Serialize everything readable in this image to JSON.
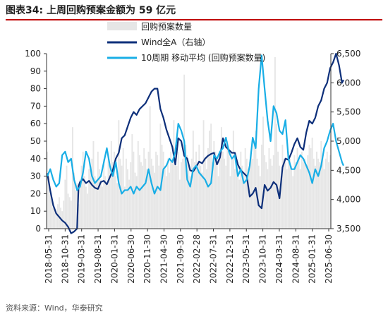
{
  "header": {
    "title": "图表34:  上周回购预案金额为 59 亿元"
  },
  "footer": {
    "source": "资料来源：Wind，华泰研究"
  },
  "colors": {
    "bars": "#e6e6e6",
    "wind_a": "#0d2f7a",
    "ma10": "#19aee6",
    "title_rule": "#c00000"
  },
  "chart_data": {
    "type": "line",
    "title": "",
    "x_tick_labels": [
      "2018-05-31",
      "2018-10-31",
      "2019-03-31",
      "2019-08-31",
      "2020-01-31",
      "2020-06-30",
      "2020-11-30",
      "2021-04-30",
      "2021-09-30",
      "2022-02-28",
      "2022-07-31",
      "2022-12-31",
      "2023-05-31",
      "2023-10-31",
      "2024-03-31",
      "2024-08-31",
      "2025-01-31",
      "2025-06-30"
    ],
    "left_axis": {
      "min": 0,
      "max": 100,
      "ticks": [
        "0",
        "10",
        "20",
        "30",
        "40",
        "50",
        "60",
        "70",
        "80",
        "90",
        "100"
      ]
    },
    "right_axis": {
      "min": 3500,
      "max": 6500,
      "ticks": [
        "3,500",
        "4,000",
        "4,500",
        "5,000",
        "5,500",
        "6,000",
        "6,500"
      ]
    },
    "legend": [
      {
        "key": "bars",
        "label": "回购预案数量"
      },
      {
        "key": "wind_a",
        "label": "Wind全A（右轴）"
      },
      {
        "key": "ma10",
        "label": "10周期 移动平均 (回购预案数量)"
      }
    ],
    "series": [
      {
        "name": "回购预案数量",
        "kind": "bar",
        "axis": "left",
        "values": [
          44,
          30,
          20,
          16,
          12,
          10,
          8,
          14,
          18,
          12,
          10,
          16,
          28,
          36,
          20,
          18,
          16,
          58,
          32,
          22,
          26,
          14,
          28,
          36,
          44,
          30,
          24,
          20,
          34,
          36,
          40,
          50,
          30,
          28,
          44,
          34,
          28,
          24,
          40,
          30,
          26,
          40,
          36,
          50,
          38,
          44,
          30,
          26,
          62,
          40,
          36,
          46,
          24,
          40,
          34,
          28,
          38,
          54,
          44,
          32,
          30,
          50,
          42,
          38,
          36,
          46,
          40,
          34,
          44,
          70,
          40,
          36,
          32,
          44,
          42,
          36,
          60,
          48,
          44,
          36,
          30,
          40,
          32,
          44,
          38,
          62,
          46,
          36,
          44,
          28,
          38,
          40,
          88,
          48,
          42,
          36,
          30,
          40,
          56,
          38,
          44,
          34,
          48,
          36,
          32,
          62,
          40,
          34,
          46,
          56,
          60,
          38,
          50,
          44,
          36,
          30,
          42,
          58,
          44,
          40,
          36,
          50,
          46,
          30,
          40,
          56,
          34,
          42,
          38,
          28,
          44,
          36,
          32,
          46,
          40,
          34,
          38,
          44,
          40,
          48,
          56,
          40,
          36,
          30,
          48,
          64,
          42,
          38,
          34,
          46,
          40,
          36,
          42,
          98,
          60,
          44,
          36,
          30,
          48,
          40,
          38,
          34,
          44,
          40,
          36,
          30,
          42,
          38,
          46,
          40,
          34,
          44,
          38,
          40,
          36,
          42,
          48,
          46,
          52,
          40,
          36,
          44,
          40,
          38,
          50,
          42,
          34,
          40,
          44,
          38,
          42
        ]
      },
      {
        "name": "Wind全A（右轴）",
        "kind": "line",
        "axis": "right",
        "x": [
          0,
          2,
          4,
          6,
          8,
          10,
          12,
          14,
          16,
          18,
          20,
          21,
          22,
          24,
          26,
          28,
          30,
          32,
          34,
          36,
          38,
          40,
          42,
          44,
          46,
          48,
          50,
          52,
          54,
          56,
          58,
          60,
          62,
          64,
          66,
          68,
          70,
          72,
          74,
          76,
          78,
          80,
          82,
          84,
          86,
          88,
          90,
          92,
          94,
          96,
          98,
          100,
          102,
          104,
          106,
          108,
          110,
          112,
          114,
          116,
          118,
          120,
          122,
          124,
          126,
          128,
          130,
          132,
          134,
          136,
          138,
          140,
          142,
          144,
          146,
          148,
          150,
          152,
          154,
          156,
          158,
          160,
          162,
          164,
          166,
          168,
          170,
          172,
          174,
          176,
          178,
          180,
          182,
          184,
          186,
          188,
          190,
          192,
          194,
          196,
          198,
          199
        ],
        "values": [
          4450,
          4150,
          3900,
          3760,
          3700,
          3640,
          3600,
          3530,
          3420,
          3450,
          3500,
          4230,
          4300,
          4350,
          4280,
          4320,
          4250,
          4200,
          4180,
          4300,
          4320,
          4260,
          4380,
          4500,
          4700,
          4800,
          5050,
          5100,
          5250,
          5400,
          5500,
          5450,
          5550,
          5600,
          5650,
          5750,
          5850,
          5900,
          5900,
          5550,
          5400,
          5200,
          5050,
          4900,
          4600,
          5050,
          5000,
          4750,
          4700,
          4500,
          4480,
          4560,
          4650,
          4620,
          4700,
          4750,
          4780,
          4800,
          4600,
          4720,
          5050,
          4900,
          4850,
          4800,
          4800,
          4600,
          4500,
          4450,
          4400,
          4050,
          4100,
          4200,
          3900,
          3850,
          4250,
          4150,
          4200,
          4300,
          4250,
          4020,
          4550,
          4700,
          4680,
          4800,
          4950,
          5050,
          4900,
          4850,
          5150,
          5350,
          5300,
          5400,
          5600,
          5700,
          5900,
          6000,
          6250,
          6350,
          6500,
          6300,
          6000,
          6050
        ]
      },
      {
        "name": "10周期 移动平均 (回购预案数量)",
        "kind": "line",
        "axis": "left",
        "x": [
          0,
          2,
          4,
          6,
          8,
          10,
          12,
          14,
          16,
          18,
          20,
          22,
          24,
          26,
          28,
          30,
          32,
          34,
          36,
          38,
          40,
          42,
          44,
          46,
          48,
          50,
          52,
          54,
          56,
          58,
          60,
          62,
          64,
          66,
          68,
          70,
          72,
          74,
          76,
          78,
          80,
          82,
          84,
          86,
          88,
          90,
          92,
          94,
          96,
          98,
          100,
          102,
          104,
          106,
          108,
          110,
          112,
          114,
          116,
          118,
          120,
          122,
          124,
          126,
          128,
          130,
          132,
          134,
          136,
          138,
          140,
          142,
          144,
          146,
          148,
          150,
          152,
          154,
          156,
          158,
          160,
          162,
          164,
          166,
          168,
          170,
          172,
          174,
          176,
          178,
          180,
          182,
          184,
          186,
          188,
          190,
          192,
          194,
          196,
          198,
          199
        ],
        "values": [
          30,
          34,
          28,
          24,
          26,
          42,
          44,
          38,
          40,
          28,
          22,
          24,
          32,
          44,
          40,
          30,
          26,
          28,
          30,
          38,
          46,
          36,
          30,
          38,
          26,
          20,
          22,
          22,
          24,
          20,
          24,
          22,
          24,
          26,
          34,
          26,
          20,
          24,
          22,
          34,
          36,
          40,
          38,
          44,
          60,
          56,
          50,
          28,
          24,
          34,
          36,
          32,
          30,
          28,
          24,
          26,
          42,
          40,
          44,
          46,
          52,
          44,
          40,
          42,
          30,
          34,
          26,
          28,
          36,
          52,
          46,
          80,
          99,
          80,
          62,
          50,
          70,
          66,
          56,
          54,
          62,
          40,
          34,
          34,
          38,
          42,
          40,
          36,
          32,
          26,
          34,
          30,
          36,
          46,
          50,
          56,
          60,
          50,
          44,
          38,
          36
        ]
      }
    ]
  }
}
